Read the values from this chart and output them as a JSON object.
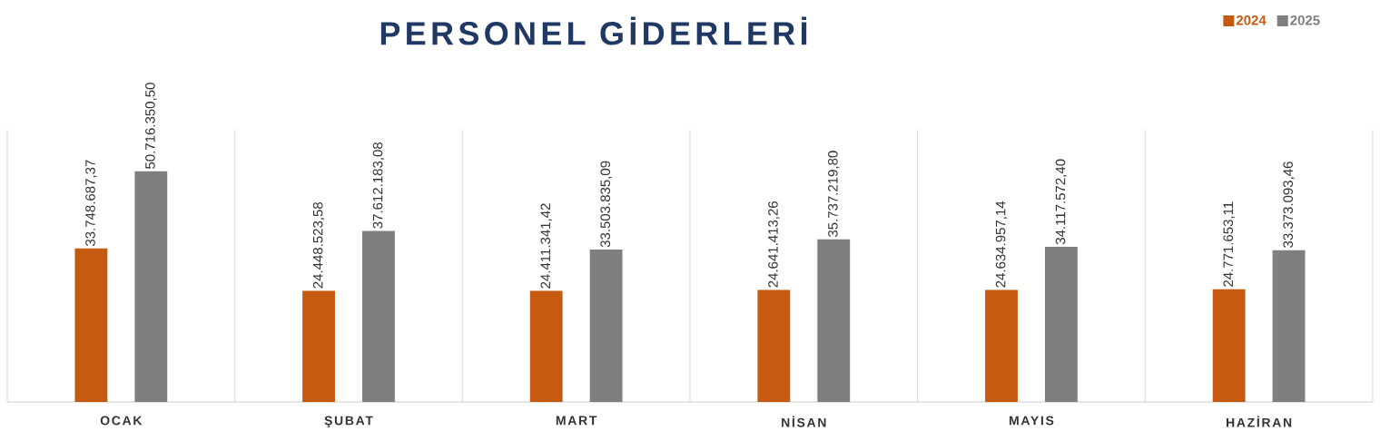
{
  "chart_data": {
    "type": "bar",
    "title": "PERSONEL GİDERLERİ",
    "categories": [
      "OCAK",
      "ŞUBAT",
      "MART",
      "NİSAN",
      "MAYIS",
      "HAZİRAN"
    ],
    "series": [
      {
        "name": "2024",
        "color": "#c55a11",
        "values": [
          33748687.37,
          24448523.58,
          24411341.42,
          24641413.26,
          24634957.14,
          24771653.11
        ],
        "value_labels": [
          "33.748.687,37",
          "24.448.523,58",
          "24.411.341,42",
          "24.641.413,26",
          "24.634.957,14",
          "24.771.653,11"
        ]
      },
      {
        "name": "2025",
        "color": "#7f7f7f",
        "values": [
          50716350.5,
          37612183.08,
          33503835.09,
          35737219.8,
          34117572.4,
          33373093.46
        ],
        "value_labels": [
          "50.716.350,50",
          "37.612.183,08",
          "33.503.835,09",
          "35.737.219,80",
          "34.117.572,40",
          "33.373.093,46"
        ]
      }
    ],
    "grid": "x",
    "legend": "top right",
    "tick_labels": "x"
  }
}
